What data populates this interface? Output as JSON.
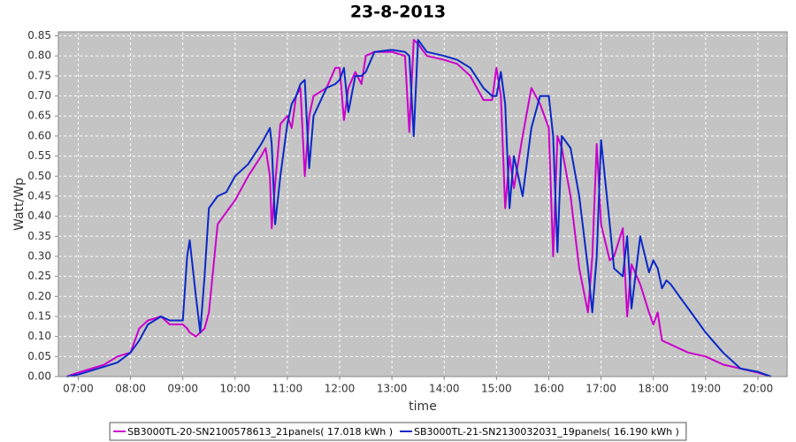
{
  "chart_data": {
    "type": "line",
    "title": "23-8-2013",
    "x_label": "time",
    "y_label": "Watt/Wp",
    "x": [
      6.78,
      7.0,
      7.5,
      7.75,
      8.0,
      8.167,
      8.333,
      8.583,
      8.75,
      9.0,
      9.083,
      9.133,
      9.25,
      9.333,
      9.417,
      9.5,
      9.667,
      9.833,
      10.0,
      10.25,
      10.5,
      10.583,
      10.667,
      10.7,
      10.767,
      10.867,
      11.0,
      11.083,
      11.167,
      11.25,
      11.333,
      11.417,
      11.5,
      11.75,
      11.917,
      12.0,
      12.083,
      12.167,
      12.3,
      12.417,
      12.5,
      12.667,
      13.0,
      13.25,
      13.333,
      13.417,
      13.5,
      13.667,
      14.0,
      14.25,
      14.5,
      14.75,
      14.917,
      15.0,
      15.083,
      15.167,
      15.25,
      15.333,
      15.5,
      15.667,
      15.833,
      16.0,
      16.083,
      16.167,
      16.25,
      16.417,
      16.583,
      16.75,
      16.833,
      16.917,
      17.0,
      17.167,
      17.25,
      17.417,
      17.5,
      17.583,
      17.75,
      17.917,
      18.0,
      18.083,
      18.167,
      18.25,
      18.333,
      18.5,
      18.667,
      19.0,
      19.333,
      19.667,
      20.0,
      20.25
    ],
    "series": [
      {
        "name": "SB3000TL-20-SN2100578613_21panels( 17.018 kWh )",
        "color": "#cc00cc",
        "values": [
          0.0,
          0.01,
          0.03,
          0.05,
          0.06,
          0.12,
          0.14,
          0.15,
          0.13,
          0.13,
          0.12,
          0.11,
          0.1,
          0.11,
          0.12,
          0.16,
          0.38,
          0.41,
          0.44,
          0.5,
          0.55,
          0.57,
          0.5,
          0.37,
          0.48,
          0.63,
          0.65,
          0.62,
          0.7,
          0.72,
          0.5,
          0.65,
          0.7,
          0.72,
          0.77,
          0.77,
          0.64,
          0.72,
          0.76,
          0.73,
          0.8,
          0.81,
          0.81,
          0.8,
          0.61,
          0.84,
          0.83,
          0.8,
          0.79,
          0.78,
          0.75,
          0.69,
          0.69,
          0.77,
          0.7,
          0.42,
          0.55,
          0.47,
          0.6,
          0.72,
          0.68,
          0.62,
          0.3,
          0.6,
          0.57,
          0.45,
          0.27,
          0.16,
          0.3,
          0.58,
          0.38,
          0.29,
          0.3,
          0.37,
          0.15,
          0.28,
          0.23,
          0.16,
          0.13,
          0.16,
          0.09,
          0.085,
          0.08,
          0.07,
          0.06,
          0.05,
          0.03,
          0.02,
          0.01,
          0.0
        ]
      },
      {
        "name": "SB3000TL-21-SN2130032031_19panels( 16.190 kWh )",
        "color": "#0a28c8",
        "values": [
          0.0,
          0.005,
          0.025,
          0.035,
          0.06,
          0.09,
          0.13,
          0.15,
          0.14,
          0.14,
          0.3,
          0.34,
          0.2,
          0.11,
          0.25,
          0.42,
          0.45,
          0.46,
          0.5,
          0.53,
          0.58,
          0.6,
          0.62,
          0.58,
          0.38,
          0.5,
          0.63,
          0.68,
          0.7,
          0.73,
          0.74,
          0.52,
          0.65,
          0.72,
          0.73,
          0.74,
          0.77,
          0.66,
          0.75,
          0.75,
          0.76,
          0.81,
          0.815,
          0.81,
          0.8,
          0.6,
          0.84,
          0.81,
          0.8,
          0.79,
          0.77,
          0.72,
          0.7,
          0.7,
          0.76,
          0.68,
          0.42,
          0.55,
          0.45,
          0.62,
          0.7,
          0.7,
          0.6,
          0.31,
          0.6,
          0.57,
          0.45,
          0.27,
          0.16,
          0.3,
          0.59,
          0.38,
          0.27,
          0.25,
          0.35,
          0.17,
          0.35,
          0.26,
          0.29,
          0.27,
          0.22,
          0.24,
          0.23,
          0.2,
          0.17,
          0.11,
          0.06,
          0.02,
          0.012,
          0.0
        ]
      }
    ],
    "xlim": [
      6.62,
      20.56
    ],
    "ylim": [
      0,
      0.86
    ],
    "xticks": [
      {
        "value": 7,
        "label": "07:00"
      },
      {
        "value": 8,
        "label": "08:00"
      },
      {
        "value": 9,
        "label": "09:00"
      },
      {
        "value": 10,
        "label": "10:00"
      },
      {
        "value": 11,
        "label": "11:00"
      },
      {
        "value": 12,
        "label": "12:00"
      },
      {
        "value": 13,
        "label": "13:00"
      },
      {
        "value": 14,
        "label": "14:00"
      },
      {
        "value": 15,
        "label": "15:00"
      },
      {
        "value": 16,
        "label": "16:00"
      },
      {
        "value": 17,
        "label": "17:00"
      },
      {
        "value": 18,
        "label": "18:00"
      },
      {
        "value": 19,
        "label": "19:00"
      },
      {
        "value": 20,
        "label": "20:00"
      }
    ],
    "yticks": [
      {
        "value": 0,
        "label": "0.00"
      },
      {
        "value": 0.05,
        "label": "0.05"
      },
      {
        "value": 0.1,
        "label": "0.10"
      },
      {
        "value": 0.15,
        "label": "0.15"
      },
      {
        "value": 0.2,
        "label": "0.20"
      },
      {
        "value": 0.25,
        "label": "0.25"
      },
      {
        "value": 0.3,
        "label": "0.30"
      },
      {
        "value": 0.35,
        "label": "0.35"
      },
      {
        "value": 0.4,
        "label": "0.40"
      },
      {
        "value": 0.45,
        "label": "0.45"
      },
      {
        "value": 0.5,
        "label": "0.50"
      },
      {
        "value": 0.55,
        "label": "0.55"
      },
      {
        "value": 0.6,
        "label": "0.60"
      },
      {
        "value": 0.65,
        "label": "0.65"
      },
      {
        "value": 0.7,
        "label": "0.70"
      },
      {
        "value": 0.75,
        "label": "0.75"
      },
      {
        "value": 0.8,
        "label": "0.80"
      },
      {
        "value": 0.85,
        "label": "0.85"
      }
    ],
    "grid": true,
    "legend": "bottom"
  }
}
